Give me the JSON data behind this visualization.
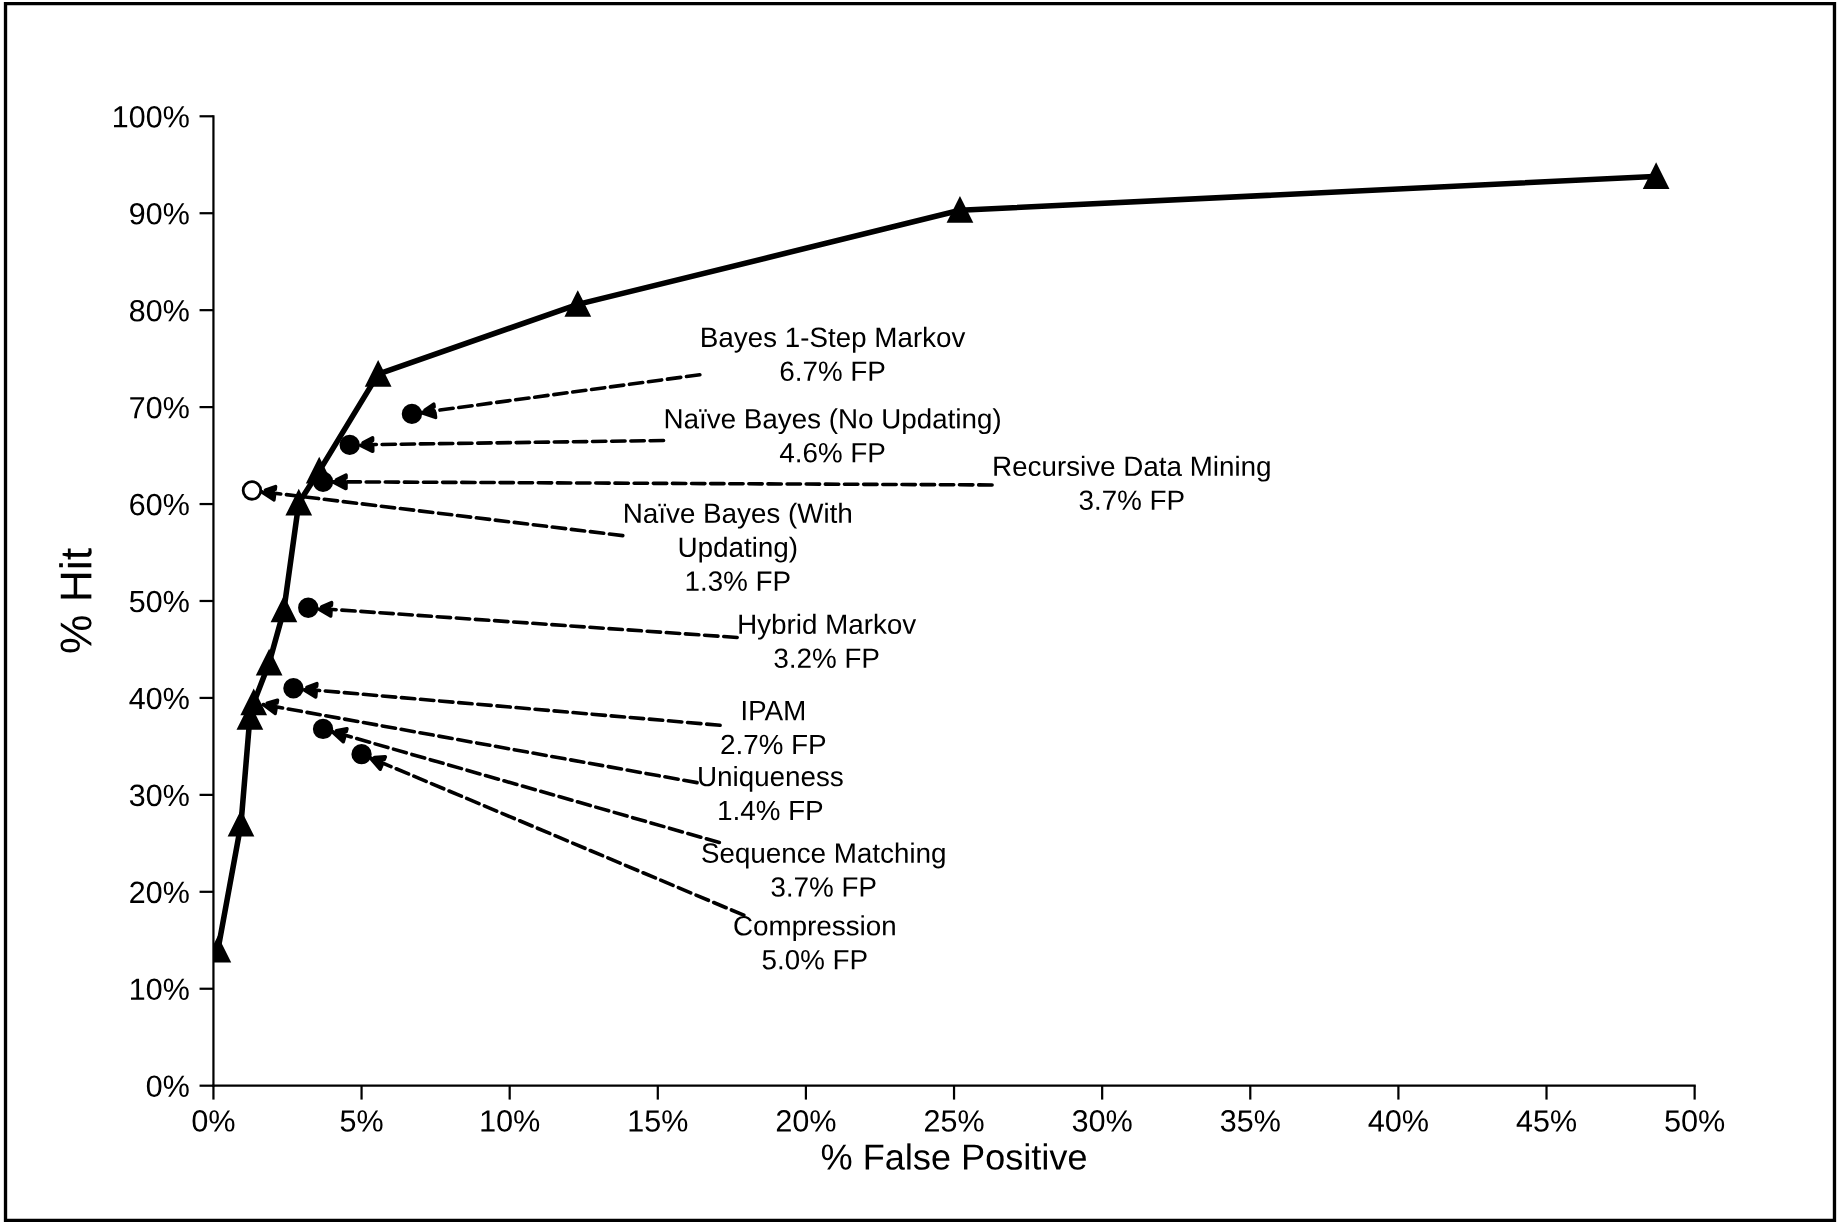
{
  "chart_data": {
    "type": "line",
    "xlabel": "% False Positive",
    "ylabel": "% Hit",
    "xlim": [
      0,
      50
    ],
    "xticks": [
      {
        "value": 0,
        "label": "0%"
      },
      {
        "value": 5,
        "label": "5%"
      },
      {
        "value": 10,
        "label": "10%"
      },
      {
        "value": 15,
        "label": "15%"
      },
      {
        "value": 20,
        "label": "20%"
      },
      {
        "value": 25,
        "label": "25%"
      },
      {
        "value": 30,
        "label": "30%"
      },
      {
        "value": 35,
        "label": "35%"
      },
      {
        "value": 40,
        "label": "40%"
      },
      {
        "value": 45,
        "label": "45%"
      },
      {
        "value": 50,
        "label": "50%"
      }
    ],
    "ylim": [
      0,
      100
    ],
    "yticks": [
      {
        "value": 0,
        "label": "0%"
      },
      {
        "value": 10,
        "label": "10%"
      },
      {
        "value": 20,
        "label": "20%"
      },
      {
        "value": 30,
        "label": "30%"
      },
      {
        "value": 40,
        "label": "40%"
      },
      {
        "value": 50,
        "label": "50%"
      },
      {
        "value": 60,
        "label": "60%"
      },
      {
        "value": 70,
        "label": "70%"
      },
      {
        "value": 80,
        "label": "80%"
      },
      {
        "value": 90,
        "label": "90%"
      },
      {
        "value": 100,
        "label": "100%"
      }
    ],
    "grid": false,
    "legend": false,
    "series": [
      {
        "marker": "triangle",
        "line_style": "solid",
        "color": "#000000",
        "x": [
          0.15,
          0.93,
          1.23,
          1.36,
          1.88,
          2.38,
          2.88,
          3.57,
          5.56,
          12.3,
          25.2,
          48.7
        ],
        "values": [
          14.0,
          27.0,
          38.0,
          39.5,
          43.6,
          49.1,
          60.1,
          63.4,
          73.4,
          80.6,
          90.3,
          93.8
        ]
      },
      {
        "type": "scatter",
        "marker": "circle",
        "color": "#000000",
        "x": [
          6.7,
          4.6,
          3.7,
          3.2,
          2.7,
          3.7,
          5.0
        ],
        "values": [
          69.3,
          66.1,
          62.3,
          49.3,
          41.0,
          36.8,
          34.2
        ]
      },
      {
        "type": "scatter",
        "marker": "circle",
        "color": "#ffffff",
        "x": [
          1.3
        ],
        "values": [
          61.4
        ]
      }
    ],
    "annotations": [
      {
        "text": "Bayes 1-Step Markov\n6.7% FP",
        "x": 6.7,
        "y": 69.3
      },
      {
        "text": "Naïve Bayes (No Updating)\n4.6% FP",
        "x": 4.6,
        "y": 66.1
      },
      {
        "text": "Recursive Data Mining\n3.7% FP",
        "x": 3.7,
        "y": 62.3
      },
      {
        "text": "Naïve Bayes (With\nUpdating)\n1.3% FP",
        "x": 1.3,
        "y": 61.4
      },
      {
        "text": "Hybrid Markov\n3.2% FP",
        "x": 3.2,
        "y": 49.3
      },
      {
        "text": "IPAM\n2.7% FP",
        "x": 2.7,
        "y": 41.0
      },
      {
        "text": "Uniqueness\n1.4% FP",
        "x": 1.36,
        "y": 39.5
      },
      {
        "text": "Sequence Matching\n3.7% FP",
        "x": 3.7,
        "y": 36.8
      },
      {
        "text": "Compression\n5.0% FP",
        "x": 5.0,
        "y": 34.2
      }
    ]
  }
}
